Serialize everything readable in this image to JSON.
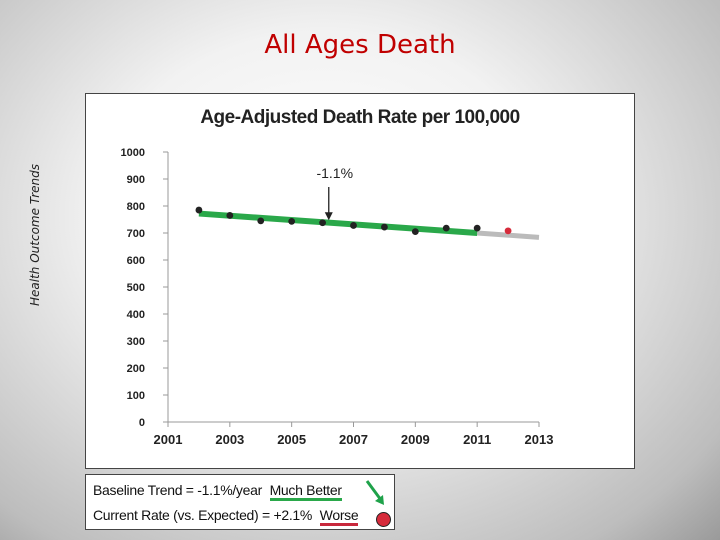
{
  "slide": {
    "title": "All Ages Death",
    "side_label": "Health Outcome Trends"
  },
  "legend": {
    "baseline_label": "Baseline Trend = ",
    "baseline_value": "-1.1%/year",
    "baseline_eval": "Much Better",
    "current_label": "Current Rate (vs. Expected) = ",
    "current_value": "+2.1%",
    "current_eval": "Worse",
    "colors": {
      "better": "#2aa84a",
      "worse": "#d62b3b",
      "arrow": "#1fa24a"
    }
  },
  "chart_data": {
    "type": "scatter",
    "title": "Age-Adjusted Death Rate per 100,000",
    "xlim": [
      2001,
      2013
    ],
    "ylim": [
      0,
      1000
    ],
    "x_ticks": [
      "2001",
      "2003",
      "2005",
      "2007",
      "2009",
      "2011",
      "2013"
    ],
    "y_ticks": [
      "1000",
      "900",
      "800",
      "700",
      "600",
      "500",
      "400",
      "300",
      "200",
      "100",
      "0"
    ],
    "grid": false,
    "series": [
      {
        "role": "observed",
        "color": "#222222",
        "points": [
          {
            "x": 2002,
            "y": 785
          },
          {
            "x": 2003,
            "y": 765
          },
          {
            "x": 2004,
            "y": 745
          },
          {
            "x": 2005,
            "y": 743
          },
          {
            "x": 2006,
            "y": 738
          },
          {
            "x": 2007,
            "y": 728
          },
          {
            "x": 2008,
            "y": 722
          },
          {
            "x": 2009,
            "y": 705
          },
          {
            "x": 2010,
            "y": 718
          },
          {
            "x": 2011,
            "y": 718
          }
        ]
      },
      {
        "role": "current",
        "color": "#d62b3b",
        "points": [
          {
            "x": 2012,
            "y": 708
          }
        ]
      }
    ],
    "trend_lines": [
      {
        "role": "baseline",
        "color": "#2aa84a",
        "from": {
          "x": 2002,
          "y": 772
        },
        "to": {
          "x": 2011,
          "y": 700
        }
      },
      {
        "role": "projected",
        "color": "#bbbbbb",
        "from": {
          "x": 2011,
          "y": 700
        },
        "to": {
          "x": 2013,
          "y": 684
        }
      }
    ],
    "annotations": [
      {
        "text": "-1.1%",
        "x": 2006.2,
        "y": 740
      }
    ]
  }
}
